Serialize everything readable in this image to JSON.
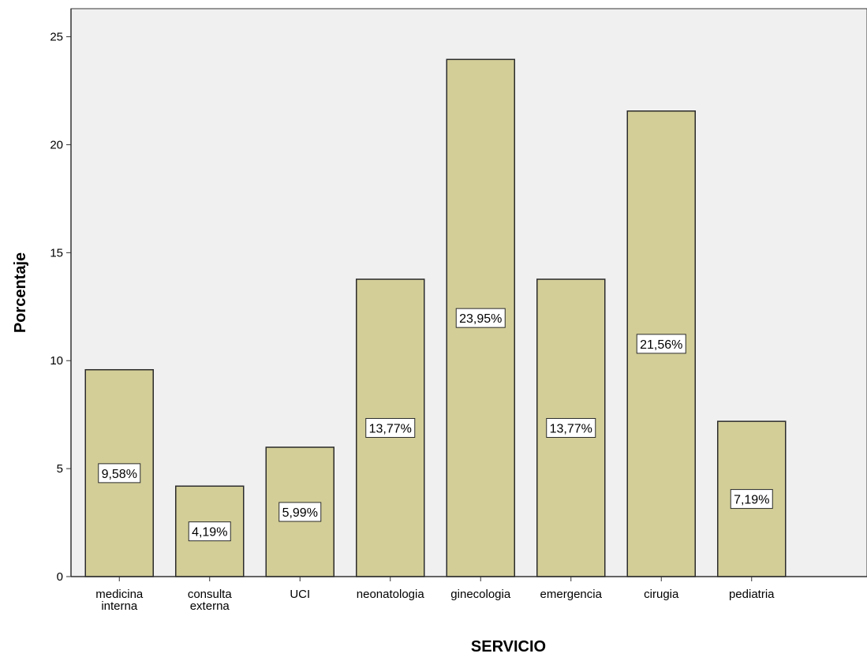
{
  "chart_data": {
    "type": "bar",
    "categories": [
      "medicina interna",
      "consulta externa",
      "UCI",
      "neonatologia",
      "ginecologia",
      "emergencia",
      "cirugia",
      "pediatria"
    ],
    "values": [
      9.58,
      4.19,
      5.99,
      13.77,
      23.95,
      13.77,
      21.56,
      7.19
    ],
    "data_labels": [
      "9,58%",
      "4,19%",
      "5,99%",
      "13,77%",
      "23,95%",
      "13,77%",
      "21,56%",
      "7,19%"
    ],
    "xlabel": "SERVICIO",
    "ylabel": "Porcentaje",
    "ylim": [
      0,
      26.3
    ],
    "yticks": [
      0,
      5,
      10,
      15,
      20,
      25
    ],
    "ytick_labels": [
      "0",
      "5",
      "10",
      "15",
      "20",
      "25"
    ],
    "grid": false,
    "colors": {
      "plot_background": "#f0f0f0",
      "bar_fill": "#d3ce98",
      "bar_stroke": "#2b2b2b",
      "axis": "#333333",
      "label_box_fill": "#ffffff",
      "label_box_stroke": "#2b2b2b",
      "text": "#000000"
    }
  }
}
